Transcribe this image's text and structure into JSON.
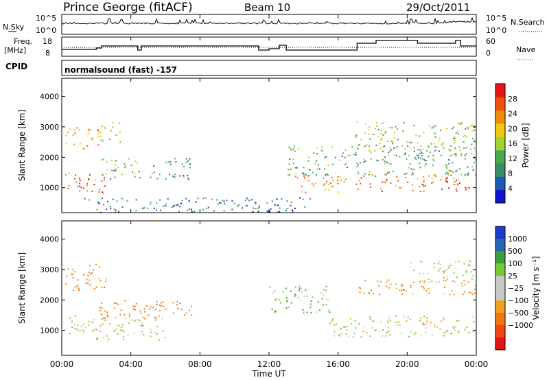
{
  "header": {
    "station": "Prince George (fitACF)",
    "beam": "Beam 10",
    "date": "29/Oct/2011"
  },
  "top_panels": {
    "nsky_label": "N.Sky",
    "nsky_ticks": [
      "10^5",
      "10^0"
    ],
    "nsearch_label": "N.Search",
    "freq_label_line1": "Freq.",
    "freq_label_line2": "[MHz]",
    "freq_ticks": [
      "18",
      "8"
    ],
    "nave_label": "Nave",
    "nave_ticks": [
      "60",
      "0"
    ],
    "cpid_label": "CPID",
    "cpid_value": "normalsound (fast) -157"
  },
  "colors": {
    "power_scale": [
      "#1414c8",
      "#1e5ab4",
      "#3c8c64",
      "#46aa50",
      "#a0d232",
      "#f0c814",
      "#f08c0a",
      "#f0500a",
      "#e61414"
    ],
    "velocity_scale": [
      "#1e3cc8",
      "#2864b4",
      "#3ca03c",
      "#78c83c",
      "#c8c8c4",
      "#c8c8c4",
      "#f0a01e",
      "#f07814",
      "#f04614",
      "#e61414"
    ]
  },
  "chart_data": [
    {
      "type": "heatmap",
      "panel": "power",
      "xlabel": "Time UT",
      "ylabel": "Slant Range [km]",
      "x_ticks": [
        "00:00",
        "04:00",
        "08:00",
        "12:00",
        "16:00",
        "20:00",
        "00:00"
      ],
      "xlim_hours": [
        0,
        24
      ],
      "y_ticks": [
        1000,
        2000,
        3000,
        4000
      ],
      "ylim": [
        180,
        4600
      ],
      "colorbar_label": "Power [dB]",
      "colorbar_ticks": [
        28,
        24,
        20,
        16,
        12,
        8,
        4
      ],
      "colorbar_range": [
        0,
        32
      ],
      "regions": [
        {
          "t0": 0.2,
          "t1": 2.6,
          "r0": 800,
          "r1": 1500,
          "level": 26
        },
        {
          "t0": 0.2,
          "t1": 2.3,
          "r0": 2300,
          "r1": 3000,
          "level": 22
        },
        {
          "t0": 2.2,
          "t1": 3.4,
          "r0": 2500,
          "r1": 3200,
          "level": 20
        },
        {
          "t0": 2.0,
          "t1": 4.5,
          "r0": 1300,
          "r1": 2000,
          "level": 12
        },
        {
          "t0": 5.0,
          "t1": 7.5,
          "r0": 1300,
          "r1": 2000,
          "level": 10
        },
        {
          "t0": 13.5,
          "t1": 16.5,
          "r0": 850,
          "r1": 1500,
          "level": 24
        },
        {
          "t0": 13.0,
          "t1": 24.0,
          "r0": 1400,
          "r1": 2400,
          "level": 12
        },
        {
          "t0": 17.0,
          "t1": 23.6,
          "r0": 900,
          "r1": 1500,
          "level": 26
        },
        {
          "t0": 17.0,
          "t1": 24.0,
          "r0": 2200,
          "r1": 3200,
          "level": 14
        },
        {
          "t0": 1.0,
          "t1": 14.5,
          "r0": 200,
          "r1": 700,
          "level": 8
        }
      ]
    },
    {
      "type": "heatmap",
      "panel": "velocity",
      "xlabel": "Time UT",
      "ylabel": "Slant Range [km]",
      "x_ticks": [
        "00:00",
        "04:00",
        "08:00",
        "12:00",
        "16:00",
        "20:00",
        "00:00"
      ],
      "xlim_hours": [
        0,
        24
      ],
      "y_ticks": [
        1000,
        2000,
        3000,
        4000
      ],
      "ylim": [
        180,
        4600
      ],
      "colorbar_label": "Velocity [m s⁻¹]",
      "colorbar_ticks": [
        "1000",
        "500",
        "100",
        "25",
        "−25",
        "−100",
        "−500",
        "−1000"
      ],
      "regions": [
        {
          "t0": 0.2,
          "t1": 2.6,
          "r0": 2300,
          "r1": 3200,
          "level": -150
        },
        {
          "t0": 2.0,
          "t1": 7.5,
          "r0": 1400,
          "r1": 2000,
          "level": -200
        },
        {
          "t0": 0.2,
          "t1": 6.0,
          "r0": 700,
          "r1": 1500,
          "level": 0
        },
        {
          "t0": 12.0,
          "t1": 15.5,
          "r0": 1600,
          "r1": 2500,
          "level": 80
        },
        {
          "t0": 15.5,
          "t1": 24.0,
          "r0": 800,
          "r1": 1500,
          "level": 0
        },
        {
          "t0": 17.0,
          "t1": 24.0,
          "r0": 2200,
          "r1": 2700,
          "level": -100
        },
        {
          "t0": 20.0,
          "t1": 24.0,
          "r0": 2600,
          "r1": 3300,
          "level": 20
        }
      ]
    }
  ]
}
